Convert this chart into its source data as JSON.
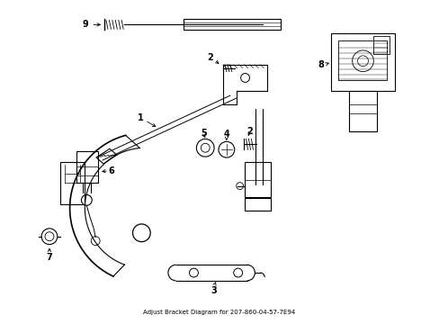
{
  "title": "Adjust Bracket Diagram for 207-860-04-57-7E94",
  "background_color": "#ffffff",
  "line_color": "#000000",
  "figsize": [
    4.89,
    3.6
  ],
  "dpi": 100
}
